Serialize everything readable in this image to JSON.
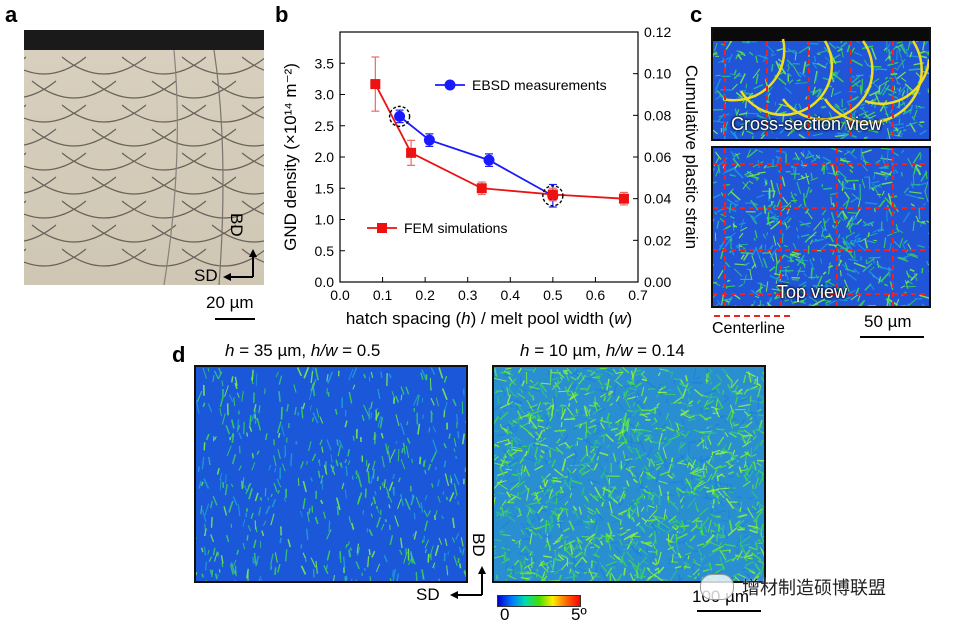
{
  "panels": {
    "a": {
      "label": "a",
      "scale_bar": "20 µm",
      "axis_bd": "BD",
      "axis_sd": "SD"
    },
    "b": {
      "label": "b"
    },
    "c": {
      "label": "c",
      "cross_section_label": "Cross-section view",
      "top_view_label": "Top view",
      "legend_centerline": "Centerline",
      "scale_bar": "50 µm"
    },
    "d": {
      "label": "d",
      "left_title_pre": "h",
      "left_title_mid": " = 35 µm, ",
      "left_title_hw": "h/w",
      "left_title_post": " = 0.5",
      "right_title_pre": "h",
      "right_title_mid": " = 10 µm, ",
      "right_title_hw": "h/w",
      "right_title_post": " = 0.14",
      "axis_bd": "BD",
      "axis_sd": "SD",
      "colorbar_min": "0",
      "colorbar_max": "5º",
      "scale_bar": "100 µm"
    }
  },
  "watermark": "增材制造硕博联盟",
  "chart_data": {
    "type": "line",
    "xlabel_pre": "hatch spacing (",
    "xlabel_h": "h",
    "xlabel_mid": ") / melt pool width (",
    "xlabel_w": "w",
    "xlabel_post": ")",
    "ylabel": "GND density (×10¹⁴ m⁻²)",
    "ylabel_right": "Cumulative plastic strain",
    "xlim": [
      0.0,
      0.7
    ],
    "ylim": [
      0.0,
      4.0
    ],
    "ylim_right": [
      0.0,
      0.12
    ],
    "x_ticks": [
      "0.0",
      "0.1",
      "0.2",
      "0.3",
      "0.4",
      "0.5",
      "0.6",
      "0.7"
    ],
    "y_ticks": [
      "0.0",
      "0.5",
      "1.0",
      "1.5",
      "2.0",
      "2.5",
      "3.0",
      "3.5"
    ],
    "y_ticks_right": [
      "0.00",
      "0.02",
      "0.04",
      "0.06",
      "0.08",
      "0.10",
      "0.12"
    ],
    "series": [
      {
        "name": "EBSD measurements",
        "color": "#1a1aff",
        "marker": "circle",
        "axis": "left",
        "x": [
          0.14,
          0.21,
          0.35,
          0.5
        ],
        "y": [
          2.65,
          2.27,
          1.95,
          1.38
        ],
        "err": [
          0.1,
          0.1,
          0.1,
          0.18
        ]
      },
      {
        "name": "FEM simulations",
        "color": "#ee1111",
        "marker": "square",
        "axis": "right",
        "x": [
          0.083,
          0.167,
          0.333,
          0.5,
          0.667
        ],
        "y": [
          0.095,
          0.062,
          0.045,
          0.042,
          0.04
        ],
        "err": [
          0.013,
          0.006,
          0.003,
          0.003,
          0.003
        ]
      }
    ],
    "circled_points": [
      {
        "series": "EBSD measurements",
        "x": 0.14
      },
      {
        "series": "EBSD measurements",
        "x": 0.5
      }
    ],
    "legend_placement": [
      "top-right",
      "bottom-center"
    ]
  }
}
